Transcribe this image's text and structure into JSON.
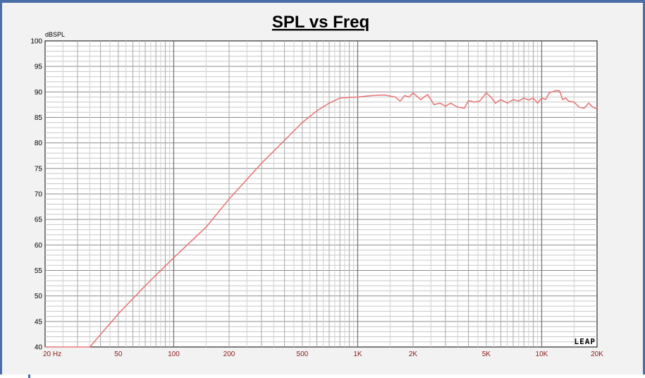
{
  "chart_data": {
    "type": "line",
    "title": "SPL vs Freq",
    "ylabel": "dBSPL",
    "xlabel": "",
    "xscale": "log",
    "xlim": [
      20,
      20000
    ],
    "ylim": [
      40,
      100
    ],
    "grid": true,
    "y_ticks": [
      "100",
      "95",
      "90",
      "85",
      "80",
      "75",
      "70",
      "65",
      "60",
      "55",
      "50",
      "45",
      "40"
    ],
    "x_ticks": [
      {
        "value": 20,
        "label": "20  Hz"
      },
      {
        "value": 50,
        "label": "50"
      },
      {
        "value": 100,
        "label": "100"
      },
      {
        "value": 200,
        "label": "200"
      },
      {
        "value": 500,
        "label": "500"
      },
      {
        "value": 1000,
        "label": "1K"
      },
      {
        "value": 2000,
        "label": "2K"
      },
      {
        "value": 5000,
        "label": "5K"
      },
      {
        "value": 10000,
        "label": "10K"
      },
      {
        "value": 20000,
        "label": "20K"
      }
    ],
    "series": [
      {
        "color": "#e87878",
        "x": [
          20,
          30,
          35,
          50,
          70,
          100,
          150,
          200,
          300,
          400,
          500,
          600,
          700,
          800,
          1000,
          1200,
          1400,
          1600,
          1700,
          1800,
          1900,
          2000,
          2200,
          2400,
          2600,
          2800,
          3000,
          3200,
          3500,
          3800,
          4000,
          4300,
          4600,
          5000,
          5300,
          5600,
          6000,
          6500,
          7000,
          7500,
          8000,
          8500,
          9000,
          9500,
          10000,
          10500,
          11000,
          12000,
          12500,
          13000,
          13500,
          14000,
          15000,
          16000,
          17000,
          18000,
          19000,
          20000
        ],
        "y": [
          40,
          40,
          40,
          46.5,
          52,
          57.5,
          63.5,
          69,
          76,
          80.5,
          84,
          86.3,
          87.8,
          88.8,
          89.0,
          89.3,
          89.4,
          89.0,
          88.2,
          89.3,
          89.0,
          89.8,
          88.5,
          89.5,
          87.5,
          87.8,
          87.2,
          87.8,
          87.0,
          86.8,
          88.3,
          88.0,
          88.2,
          89.8,
          89.0,
          87.8,
          88.5,
          87.8,
          88.5,
          88.2,
          88.8,
          88.4,
          88.8,
          87.8,
          88.8,
          88.5,
          89.8,
          90.3,
          90.2,
          88.5,
          88.8,
          88.2,
          88.0,
          87.0,
          86.8,
          87.8,
          87.0,
          86.7
        ]
      }
    ]
  },
  "logo_text": "LEAP"
}
